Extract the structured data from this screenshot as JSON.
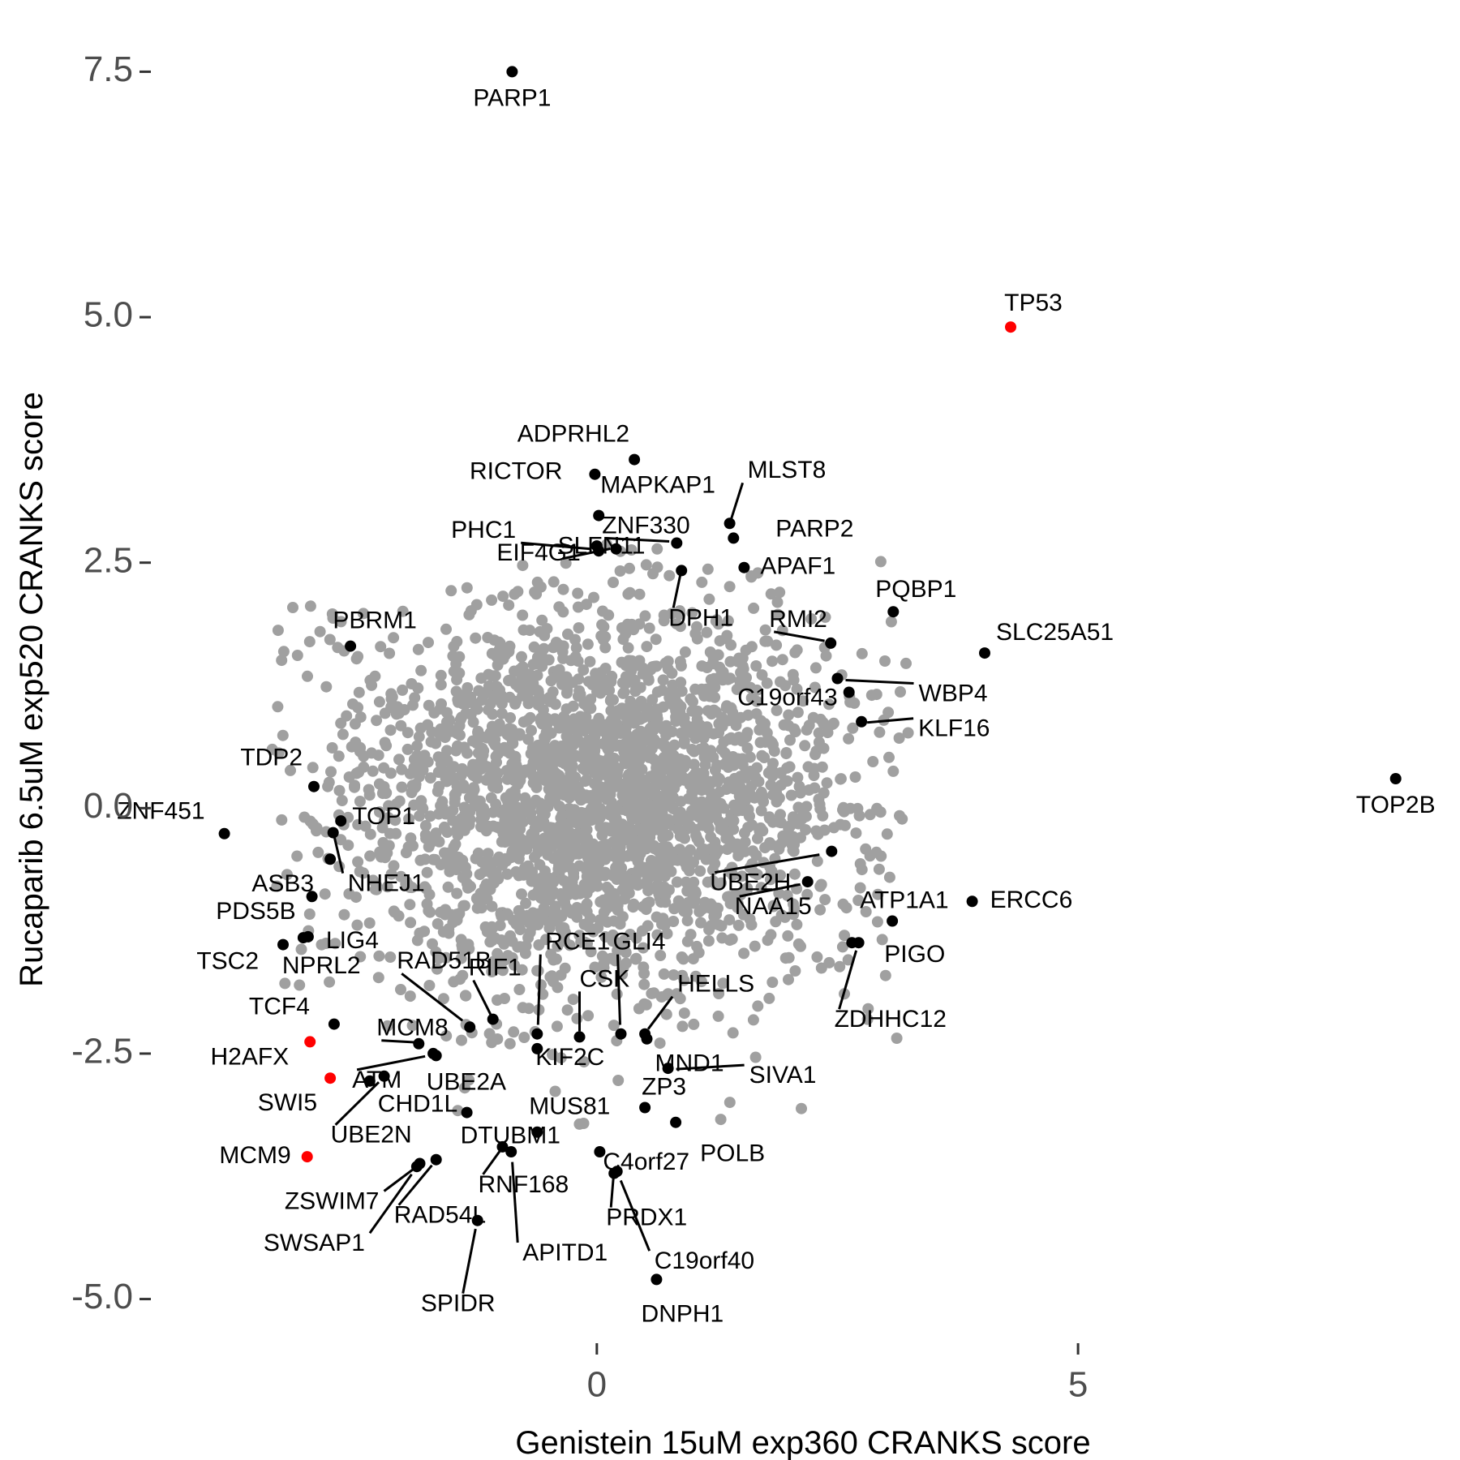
{
  "chart_data": {
    "type": "scatter",
    "xlabel": "Genistein 15uM exp360 CRANKS score",
    "ylabel": "Rucaparib 6.5uM exp520 CRANKS score",
    "xlim": [
      -4.6,
      8.8
    ],
    "ylim": [
      -5.4,
      7.9
    ],
    "x_ticks": [
      {
        "value": 0,
        "label": "0"
      },
      {
        "value": 5,
        "label": "5"
      }
    ],
    "y_ticks": [
      {
        "value": 7.5,
        "label": "7.5"
      },
      {
        "value": 5.0,
        "label": "5.0"
      },
      {
        "value": 2.5,
        "label": "2.5"
      },
      {
        "value": 0.0,
        "label": "0.0"
      },
      {
        "value": -2.5,
        "label": "-2.5"
      },
      {
        "value": -5.0,
        "label": "-5.0"
      }
    ],
    "grid": false,
    "colors": {
      "background_genes": "#a0a0a0",
      "labeled_genes": "#000000",
      "highlighted_genes": "#ff0000"
    },
    "background_cloud": {
      "center": [
        0.0,
        0.1
      ],
      "sd": [
        1.3,
        1.0
      ],
      "color": "#a0a0a0"
    },
    "points": [
      {
        "gene": "PARP1",
        "x": -0.88,
        "y": 7.5,
        "color": "#000000",
        "label_pos": "below"
      },
      {
        "gene": "TP53",
        "x": 4.3,
        "y": 4.9,
        "color": "#ff0000",
        "label_pos": "above"
      },
      {
        "gene": "TOP2B",
        "x": 8.3,
        "y": 0.3,
        "color": "#000000",
        "label_pos": "below"
      },
      {
        "gene": "ADPRHL2",
        "x": 0.39,
        "y": 3.55,
        "color": "#000000"
      },
      {
        "gene": "RICTOR",
        "x": -0.02,
        "y": 3.4,
        "color": "#000000"
      },
      {
        "gene": "MAPKAP1",
        "x": 0.02,
        "y": 2.98,
        "color": "#000000"
      },
      {
        "gene": "MLST8",
        "x": 1.38,
        "y": 2.9,
        "color": "#000000"
      },
      {
        "gene": "ZNF330",
        "x": 0.83,
        "y": 2.7,
        "color": "#000000"
      },
      {
        "gene": "PARP2",
        "x": 1.42,
        "y": 2.75,
        "color": "#000000"
      },
      {
        "gene": "EIF4G1",
        "x": 0.0,
        "y": 2.67,
        "color": "#000000"
      },
      {
        "gene": "PHC1",
        "x": 0.02,
        "y": 2.62,
        "color": "#000000"
      },
      {
        "gene": "SLFN11",
        "x": 0.2,
        "y": 2.64,
        "color": "#000000"
      },
      {
        "gene": "APAF1",
        "x": 1.53,
        "y": 2.45,
        "color": "#000000"
      },
      {
        "gene": "DPH1",
        "x": 0.88,
        "y": 2.42,
        "color": "#000000"
      },
      {
        "gene": "PQBP1",
        "x": 3.08,
        "y": 2.0,
        "color": "#000000"
      },
      {
        "gene": "RMI2",
        "x": 2.43,
        "y": 1.68,
        "color": "#000000"
      },
      {
        "gene": "SLC25A51",
        "x": 4.03,
        "y": 1.58,
        "color": "#000000"
      },
      {
        "gene": "PBRM1",
        "x": -2.56,
        "y": 1.65,
        "color": "#000000"
      },
      {
        "gene": "WBP4",
        "x": 2.5,
        "y": 1.32,
        "color": "#000000"
      },
      {
        "gene": "C19orf43",
        "x": 2.62,
        "y": 1.18,
        "color": "#000000"
      },
      {
        "gene": "KLF16",
        "x": 2.75,
        "y": 0.88,
        "color": "#000000"
      },
      {
        "gene": "TDP2",
        "x": -2.94,
        "y": 0.22,
        "color": "#000000"
      },
      {
        "gene": "TOP1",
        "x": -2.66,
        "y": -0.13,
        "color": "#000000"
      },
      {
        "gene": "ZNF451",
        "x": -3.87,
        "y": -0.26,
        "color": "#000000"
      },
      {
        "gene": "ASB3",
        "x": -2.77,
        "y": -0.52,
        "color": "#000000"
      },
      {
        "gene": "NHEJ1",
        "x": -2.74,
        "y": -0.25,
        "color": "#000000"
      },
      {
        "gene": "UBE2H",
        "x": 2.44,
        "y": -0.44,
        "color": "#000000"
      },
      {
        "gene": "PDS5B",
        "x": -2.96,
        "y": -0.9,
        "color": "#000000"
      },
      {
        "gene": "LIG4",
        "x": -3.0,
        "y": -1.31,
        "color": "#000000"
      },
      {
        "gene": "ATP1A1",
        "x": 3.07,
        "y": -1.15,
        "color": "#000000"
      },
      {
        "gene": "ERCC6",
        "x": 3.9,
        "y": -0.95,
        "color": "#000000"
      },
      {
        "gene": "NAA15",
        "x": 2.19,
        "y": -0.75,
        "color": "#000000"
      },
      {
        "gene": "TSC2",
        "x": -3.26,
        "y": -1.39,
        "color": "#000000"
      },
      {
        "gene": "NPRL2",
        "x": -3.05,
        "y": -1.32,
        "color": "#000000"
      },
      {
        "gene": "PIGO",
        "x": 2.65,
        "y": -1.37,
        "color": "#000000"
      },
      {
        "gene": "ZDHHC12",
        "x": 2.72,
        "y": -1.37,
        "color": "#000000"
      },
      {
        "gene": "RCE1",
        "x": -0.62,
        "y": -2.3,
        "color": "#000000"
      },
      {
        "gene": "GLI4",
        "x": 0.25,
        "y": -2.3,
        "color": "#000000"
      },
      {
        "gene": "RAD51B",
        "x": -1.32,
        "y": -2.23,
        "color": "#000000"
      },
      {
        "gene": "RIF1",
        "x": -1.08,
        "y": -2.15,
        "color": "#000000"
      },
      {
        "gene": "CSK",
        "x": -0.18,
        "y": -2.33,
        "color": "#000000"
      },
      {
        "gene": "HELLS",
        "x": 0.5,
        "y": -2.3,
        "color": "#000000"
      },
      {
        "gene": "TCF4",
        "x": -2.73,
        "y": -2.2,
        "color": "#000000"
      },
      {
        "gene": "MCM8",
        "x": -1.85,
        "y": -2.4,
        "color": "#000000"
      },
      {
        "gene": "KIF2C",
        "x": -0.62,
        "y": -2.45,
        "color": "#000000"
      },
      {
        "gene": "MND1",
        "x": 0.52,
        "y": -2.35,
        "color": "#000000"
      },
      {
        "gene": "H2AFX",
        "x": -2.98,
        "y": -2.38,
        "color": "#ff0000"
      },
      {
        "gene": "ATM",
        "x": -1.7,
        "y": -2.5,
        "color": "#000000"
      },
      {
        "gene": "UBE2A",
        "x": -1.67,
        "y": -2.52,
        "color": "#000000"
      },
      {
        "gene": "SIVA1",
        "x": 0.74,
        "y": -2.65,
        "color": "#000000"
      },
      {
        "gene": "SWI5",
        "x": -2.77,
        "y": -2.75,
        "color": "#ff0000"
      },
      {
        "gene": "CHD1L",
        "x": -2.36,
        "y": -2.78,
        "color": "#000000"
      },
      {
        "gene": "DTUBM1",
        "x": -1.35,
        "y": -3.1,
        "color": "#000000"
      },
      {
        "gene": "MUS81",
        "x": -0.62,
        "y": -3.3,
        "color": "#000000"
      },
      {
        "gene": "ZP3",
        "x": 0.5,
        "y": -3.05,
        "color": "#000000"
      },
      {
        "gene": "MCM9",
        "x": -3.01,
        "y": -3.55,
        "color": "#ff0000"
      },
      {
        "gene": "UBE2N",
        "x": -2.21,
        "y": -2.73,
        "color": "#000000"
      },
      {
        "gene": "C4orf27",
        "x": 0.03,
        "y": -3.5,
        "color": "#000000"
      },
      {
        "gene": "POLB",
        "x": 0.82,
        "y": -3.2,
        "color": "#000000"
      },
      {
        "gene": "ZSWIM7",
        "x": -1.84,
        "y": -3.62,
        "color": "#000000"
      },
      {
        "gene": "RNF168",
        "x": -0.98,
        "y": -3.45,
        "color": "#000000"
      },
      {
        "gene": "SWSAP1",
        "x": -1.87,
        "y": -3.65,
        "color": "#000000"
      },
      {
        "gene": "RAD54L",
        "x": -1.67,
        "y": -3.58,
        "color": "#000000"
      },
      {
        "gene": "PRDX1",
        "x": 0.18,
        "y": -3.72,
        "color": "#000000"
      },
      {
        "gene": "APITD1",
        "x": -0.89,
        "y": -3.5,
        "color": "#000000"
      },
      {
        "gene": "C19orf40",
        "x": 0.21,
        "y": -3.7,
        "color": "#000000"
      },
      {
        "gene": "SPIDR",
        "x": -1.24,
        "y": -4.2,
        "color": "#000000"
      },
      {
        "gene": "DNPH1",
        "x": 0.62,
        "y": -4.8,
        "color": "#000000"
      }
    ]
  }
}
